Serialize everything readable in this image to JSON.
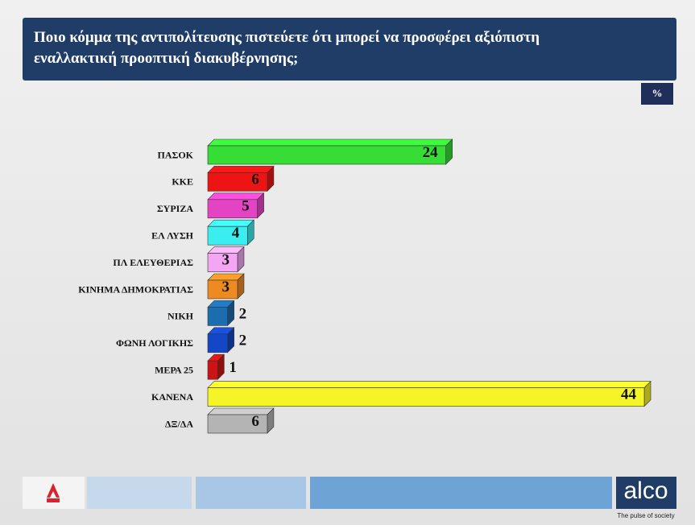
{
  "chart_data": {
    "type": "bar3d",
    "orientation": "horizontal",
    "title": "Ποιο κόμμα της αντιπολίτευσης πιστεύετε ότι μπορεί να προσφέρει αξιόπιστη εναλλακτική προοπτική διακυβέρνησης;",
    "unit": "%",
    "categories": [
      "ΠΑΣΟΚ",
      "ΚΚΕ",
      "ΣΥΡΙΖΑ",
      "ΕΛ ΛΥΣΗ",
      "ΠΛ ΕΛΕΥΘΕΡΙΑΣ",
      "ΚΙΝΗΜΑ ΔΗΜΟΚΡΑΤΙΑΣ",
      "ΝΙΚΗ",
      "ΦΩΝΗ ΛΟΓΙΚΗΣ",
      "ΜΕΡΑ 25",
      "ΚΑΝΕΝΑ",
      "ΔΞ/ΔΑ"
    ],
    "values": [
      24,
      6,
      5,
      4,
      3,
      3,
      2,
      2,
      1,
      44,
      6
    ],
    "colors": [
      "#35dd35",
      "#ee1414",
      "#e444c4",
      "#3aeef0",
      "#f4a6f4",
      "#ee8a22",
      "#1b6db0",
      "#1446c8",
      "#cc1414",
      "#f4f426",
      "#b4b4b4"
    ]
  },
  "footer": {
    "brand": "alco",
    "tagline": "The pulse of society"
  }
}
